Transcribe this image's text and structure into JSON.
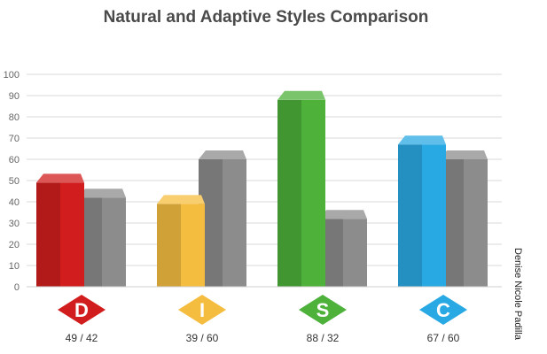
{
  "chart_data": {
    "type": "bar",
    "title": "Natural and Adaptive Styles Comparison",
    "categories": [
      "D",
      "I",
      "S",
      "C"
    ],
    "series": [
      {
        "values": [
          49,
          39,
          88,
          67
        ]
      },
      {
        "values": [
          42,
          60,
          32,
          60
        ]
      }
    ],
    "value_labels": [
      "49 / 42",
      "39 / 60",
      "88 / 32",
      "67 / 60"
    ],
    "category_colors": [
      "#d11d1d",
      "#f5bd3f",
      "#4db13a",
      "#29a9e3"
    ],
    "secondary_color": "#8c8c8c",
    "ylim": [
      0,
      100
    ],
    "yticks": [
      0,
      10,
      20,
      30,
      40,
      50,
      60,
      70,
      80,
      90,
      100
    ],
    "grid": true,
    "xlabel": "",
    "ylabel": ""
  },
  "side_label": "Denise Nicole Padilla"
}
